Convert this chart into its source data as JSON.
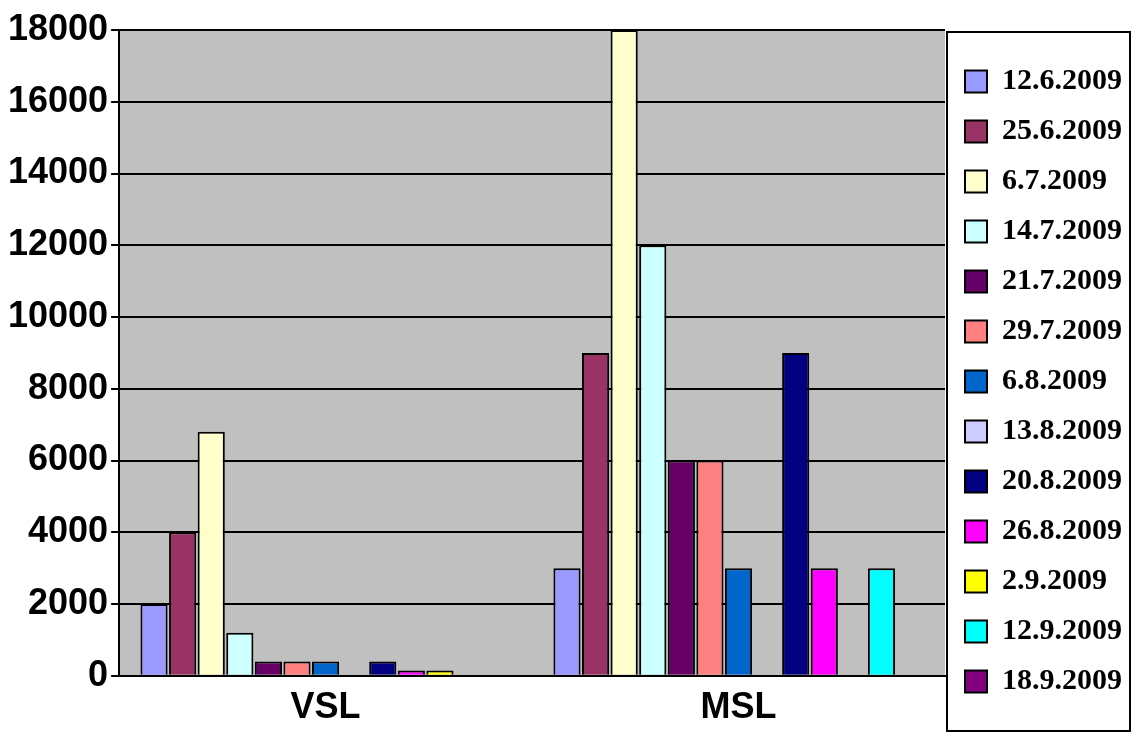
{
  "chart_data": {
    "type": "bar",
    "categories": [
      "VSL",
      "MSL"
    ],
    "series": [
      {
        "name": "12.6.2009",
        "color": "#9999ff",
        "values": [
          2000,
          3000
        ]
      },
      {
        "name": "25.6.2009",
        "color": "#993366",
        "values": [
          4000,
          9000
        ]
      },
      {
        "name": "6.7.2009",
        "color": "#ffffcc",
        "values": [
          6800,
          18000
        ]
      },
      {
        "name": "14.7.2009",
        "color": "#ccffff",
        "values": [
          1200,
          12000
        ]
      },
      {
        "name": "21.7.2009",
        "color": "#660066",
        "values": [
          400,
          6000
        ]
      },
      {
        "name": "29.7.2009",
        "color": "#ff8080",
        "values": [
          400,
          6000
        ]
      },
      {
        "name": "6.8.2009",
        "color": "#0066cc",
        "values": [
          400,
          3000
        ]
      },
      {
        "name": "13.8.2009",
        "color": "#ccccff",
        "values": [
          0,
          0
        ]
      },
      {
        "name": "20.8.2009",
        "color": "#000080",
        "values": [
          400,
          9000
        ]
      },
      {
        "name": "26.8.2009",
        "color": "#ff00ff",
        "values": [
          150,
          3000
        ]
      },
      {
        "name": "2.9.2009",
        "color": "#ffff00",
        "values": [
          150,
          0
        ]
      },
      {
        "name": "12.9.2009",
        "color": "#00ffff",
        "values": [
          0,
          3000
        ]
      },
      {
        "name": "18.9.2009",
        "color": "#800080",
        "values": [
          0,
          0
        ]
      }
    ],
    "ylim": [
      0,
      18000
    ],
    "yticks": [
      0,
      2000,
      4000,
      6000,
      8000,
      10000,
      12000,
      14000,
      16000,
      18000
    ],
    "grid": "y",
    "legend": "right"
  }
}
